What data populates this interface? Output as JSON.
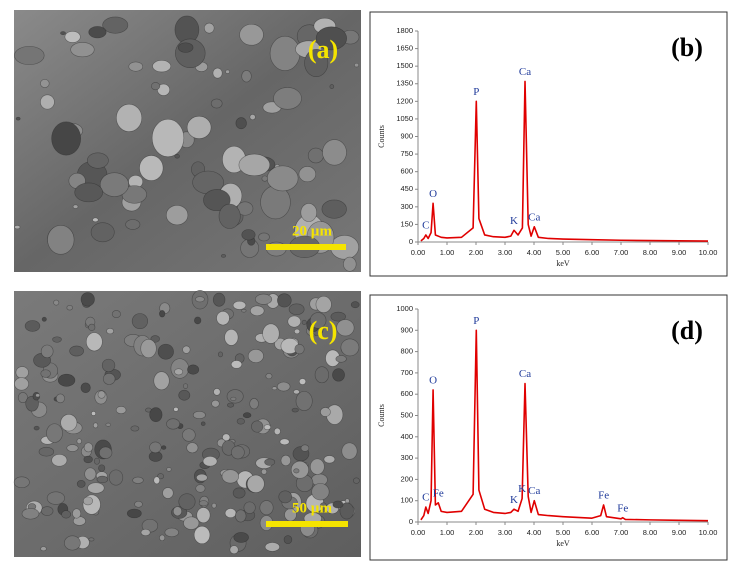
{
  "images": [
    {
      "label": "(a)",
      "scale_bar": "20 µm"
    },
    {
      "label": "(c)",
      "scale_bar": "50 µm"
    }
  ],
  "chart_data": [
    {
      "type": "line",
      "title": "(b)",
      "xlabel": "keV",
      "ylabel": "Counts",
      "color": "#e00000",
      "x": [
        0.1,
        0.2,
        0.27,
        0.35,
        0.45,
        0.52,
        0.6,
        0.8,
        1.0,
        1.5,
        1.9,
        2.01,
        2.1,
        2.3,
        2.6,
        3.0,
        3.2,
        3.31,
        3.45,
        3.6,
        3.69,
        3.8,
        3.9,
        4.01,
        4.15,
        4.5,
        5.0,
        6.0,
        7.0,
        8.0,
        9.0,
        10.0
      ],
      "values": [
        10,
        30,
        60,
        30,
        80,
        330,
        60,
        40,
        35,
        40,
        120,
        1200,
        200,
        60,
        45,
        40,
        50,
        100,
        60,
        120,
        1370,
        150,
        50,
        130,
        40,
        30,
        25,
        20,
        15,
        12,
        10,
        8
      ],
      "annotations": [
        {
          "text": "C",
          "x": 0.27
        },
        {
          "text": "O",
          "x": 0.52
        },
        {
          "text": "P",
          "x": 2.01
        },
        {
          "text": "K",
          "x": 3.31
        },
        {
          "text": "Ca",
          "x": 3.69
        },
        {
          "text": "Ca",
          "x": 4.01
        }
      ],
      "xlim": [
        0,
        10
      ],
      "ylim": [
        0,
        1800
      ],
      "xticks": [
        {
          "value": 0,
          "label": "0.00"
        },
        {
          "value": 1,
          "label": "1.00"
        },
        {
          "value": 2,
          "label": "2.00"
        },
        {
          "value": 3,
          "label": "3.00"
        },
        {
          "value": 4,
          "label": "4.00"
        },
        {
          "value": 5,
          "label": "5.00"
        },
        {
          "value": 6,
          "label": "6.00"
        },
        {
          "value": 7,
          "label": "7.00"
        },
        {
          "value": 8,
          "label": "8.00"
        },
        {
          "value": 9,
          "label": "9.00"
        },
        {
          "value": 10,
          "label": "10.00"
        }
      ],
      "yticks": [
        0,
        150,
        300,
        450,
        600,
        750,
        900,
        1050,
        1200,
        1350,
        1500,
        1650,
        1800
      ]
    },
    {
      "type": "line",
      "title": "(d)",
      "xlabel": "keV",
      "ylabel": "Counts",
      "color": "#e00000",
      "x": [
        0.1,
        0.2,
        0.27,
        0.35,
        0.45,
        0.52,
        0.6,
        0.7,
        0.8,
        1.0,
        1.5,
        1.9,
        2.01,
        2.1,
        2.3,
        2.6,
        3.0,
        3.2,
        3.31,
        3.45,
        3.59,
        3.69,
        3.8,
        3.9,
        4.01,
        4.15,
        4.5,
        5.0,
        6.0,
        6.3,
        6.4,
        6.5,
        7.0,
        7.06,
        7.15,
        8.0,
        9.0,
        10.0
      ],
      "values": [
        10,
        30,
        70,
        40,
        100,
        620,
        80,
        90,
        50,
        45,
        50,
        130,
        900,
        150,
        60,
        45,
        40,
        45,
        60,
        50,
        110,
        650,
        120,
        45,
        100,
        35,
        30,
        25,
        18,
        30,
        80,
        25,
        15,
        20,
        12,
        10,
        8,
        6
      ],
      "annotations": [
        {
          "text": "C",
          "x": 0.27
        },
        {
          "text": "O",
          "x": 0.52
        },
        {
          "text": "Fe",
          "x": 0.7
        },
        {
          "text": "P",
          "x": 2.01
        },
        {
          "text": "K",
          "x": 3.31
        },
        {
          "text": "K",
          "x": 3.59
        },
        {
          "text": "Ca",
          "x": 3.69
        },
        {
          "text": "Ca",
          "x": 4.01
        },
        {
          "text": "Fe",
          "x": 6.4
        },
        {
          "text": "Fe",
          "x": 7.06
        }
      ],
      "xlim": [
        0,
        10
      ],
      "ylim": [
        0,
        1000
      ],
      "xticks": [
        {
          "value": 0,
          "label": "0.00"
        },
        {
          "value": 1,
          "label": "1.00"
        },
        {
          "value": 2,
          "label": "2.00"
        },
        {
          "value": 3,
          "label": "3.00"
        },
        {
          "value": 4,
          "label": "4.00"
        },
        {
          "value": 5,
          "label": "5.00"
        },
        {
          "value": 6,
          "label": "6.00"
        },
        {
          "value": 7,
          "label": "7.00"
        },
        {
          "value": 8,
          "label": "8.00"
        },
        {
          "value": 9,
          "label": "9.00"
        },
        {
          "value": 10,
          "label": "10.00"
        }
      ],
      "yticks": [
        0,
        100,
        200,
        300,
        400,
        500,
        600,
        700,
        800,
        900,
        1000
      ]
    }
  ]
}
